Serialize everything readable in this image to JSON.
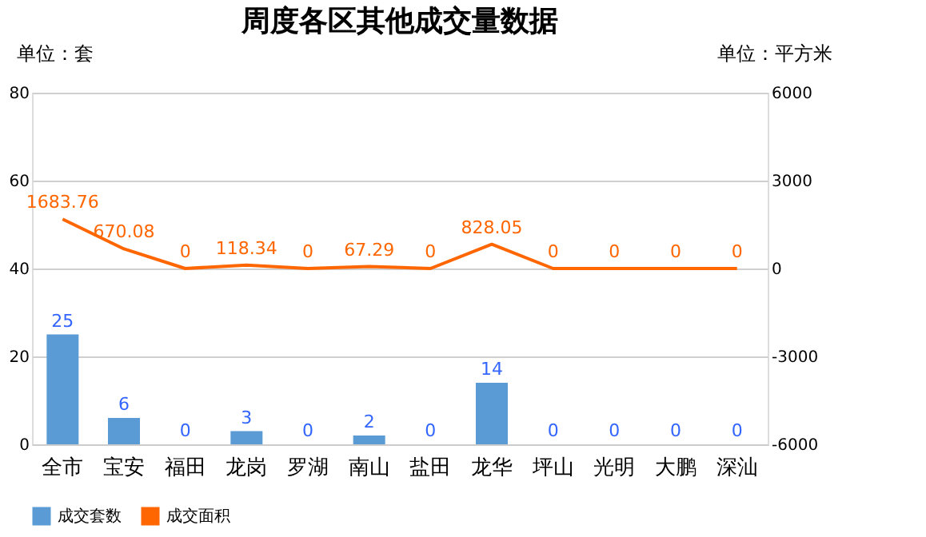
{
  "chart_data": {
    "type": "bar",
    "title": "周度各区其他成交量数据",
    "ylabel": "单位：套",
    "y2label": "单位：平方米",
    "categories": [
      "全市",
      "宝安",
      "福田",
      "龙岗",
      "罗湖",
      "南山",
      "盐田",
      "龙华",
      "坪山",
      "光明",
      "大鹏",
      "深汕"
    ],
    "series": [
      {
        "name": "成交套数",
        "color": "#5b9bd5",
        "values": [
          25,
          6,
          0,
          3,
          0,
          2,
          0,
          14,
          0,
          0,
          0,
          0
        ]
      },
      {
        "name": "成交面积",
        "type": "line",
        "axis": "y2",
        "color": "#ff6600",
        "values": [
          1683.76,
          670.08,
          0,
          118.34,
          0,
          67.29,
          0,
          828.05,
          0,
          0,
          0,
          0
        ]
      }
    ],
    "ylim": [
      0,
      80
    ],
    "yticks": [
      0,
      20,
      40,
      60,
      80
    ],
    "y2lim": [
      -6000,
      6000
    ],
    "y2ticks": [
      -6000,
      -3000,
      0,
      3000,
      6000
    ],
    "grid": "y",
    "legend": "bottom",
    "data_labels": true,
    "marker": "none",
    "line_style": "solid"
  }
}
